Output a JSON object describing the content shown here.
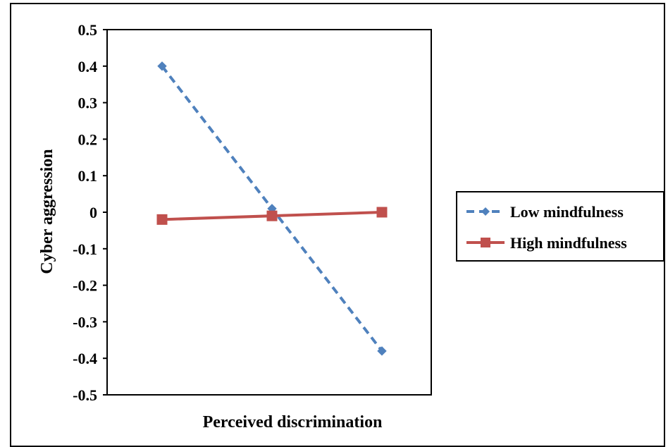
{
  "chart_data": {
    "type": "line",
    "title": "",
    "xlabel": "Perceived discrimination",
    "ylabel": "Cyber aggression",
    "ylim": [
      -0.5,
      0.5
    ],
    "y_ticks": [
      "0.5",
      "0.4",
      "0.3",
      "0.2",
      "0.1",
      "0",
      "-0.1",
      "-0.2",
      "-0.3",
      "-0.4",
      "-0.5"
    ],
    "x": [
      1,
      2,
      3
    ],
    "grid": false,
    "legend_position": "right",
    "series": [
      {
        "name": "Low mindfulness",
        "values": [
          0.4,
          0.01,
          -0.38
        ],
        "color": "#4f81bd",
        "line_style": "dashed",
        "marker": "diamond"
      },
      {
        "name": "High mindfulness",
        "values": [
          -0.02,
          -0.01,
          0.0
        ],
        "color": "#c0504d",
        "line_style": "solid",
        "marker": "square"
      }
    ]
  }
}
